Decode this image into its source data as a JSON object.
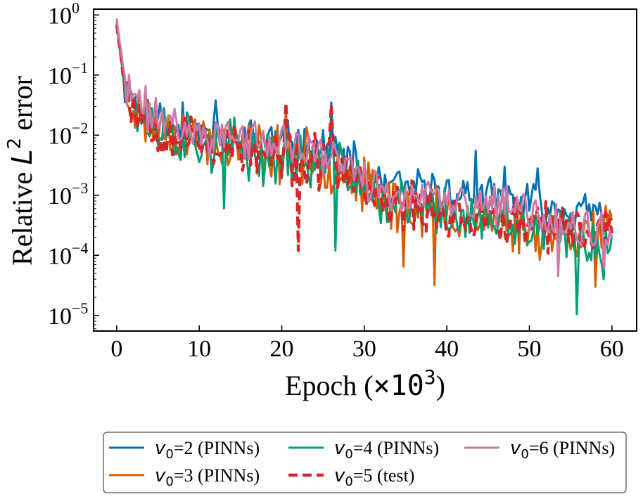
{
  "chart_data": {
    "type": "line",
    "xlabel_text": "Epoch (",
    "xlabel_factor": "×10",
    "xlabel_exponent": "3",
    "xlabel_close": ")",
    "ylabel_text": "Relative ",
    "ylabel_symbol": "L",
    "ylabel_exponent": "2",
    "ylabel_suffix": " error",
    "x_ticks": [
      "0",
      "10",
      "20",
      "30",
      "40",
      "50",
      "60"
    ],
    "y_ticks": [
      {
        "base": "10",
        "exp": "0"
      },
      {
        "base": "10",
        "exp": "−1"
      },
      {
        "base": "10",
        "exp": "−2"
      },
      {
        "base": "10",
        "exp": "−3"
      },
      {
        "base": "10",
        "exp": "−4"
      },
      {
        "base": "10",
        "exp": "−5"
      }
    ],
    "xlim": [
      -2.8,
      63
    ],
    "ylim": [
      5.5e-06,
      1.25
    ],
    "yscale": "log",
    "grid": false,
    "legend_position": "bottom, below plot",
    "series": [
      {
        "label_var": "v",
        "label_sub": "0",
        "label_rest": "=2 (PINNs)",
        "color": "#0072b2",
        "dashed": false,
        "seed": 11,
        "profile": [
          [
            0,
            0.8
          ],
          [
            1,
            0.07
          ],
          [
            3,
            0.025
          ],
          [
            7,
            0.015
          ],
          [
            10,
            0.011
          ],
          [
            20,
            0.008
          ],
          [
            27,
            0.005
          ],
          [
            32,
            0.0014
          ],
          [
            40,
            0.0011
          ],
          [
            45,
            0.0009
          ],
          [
            50,
            0.0007
          ],
          [
            55,
            0.00055
          ],
          [
            60,
            0.00045
          ]
        ],
        "spread": 0.55,
        "spikes": [
          [
            8,
            0.035
          ],
          [
            12,
            0.038
          ],
          [
            26,
            0.035
          ],
          [
            43.5,
            0.0055
          ],
          [
            47,
            0.003
          ],
          [
            51,
            0.0028
          ]
        ]
      },
      {
        "label_var": "v",
        "label_sub": "0",
        "label_rest": "=3 (PINNs)",
        "color": "#d55e00",
        "dashed": false,
        "seed": 23,
        "profile": [
          [
            0,
            0.78
          ],
          [
            1,
            0.06
          ],
          [
            3,
            0.02
          ],
          [
            7,
            0.012
          ],
          [
            10,
            0.009
          ],
          [
            20,
            0.005
          ],
          [
            27,
            0.003
          ],
          [
            32,
            0.0008
          ],
          [
            40,
            0.0005
          ],
          [
            45,
            0.0004
          ],
          [
            50,
            0.0003
          ],
          [
            55,
            0.00025
          ],
          [
            60,
            0.00025
          ]
        ],
        "spread": 0.75,
        "spikes": [
          [
            20.5,
            0.03
          ],
          [
            34.8,
            6.5e-05
          ],
          [
            38.5,
            3.2e-05
          ],
          [
            58,
            3e-05
          ]
        ]
      },
      {
        "label_var": "v",
        "label_sub": "0",
        "label_rest": "=4 (PINNs)",
        "color": "#009e73",
        "dashed": false,
        "seed": 37,
        "profile": [
          [
            0,
            0.8
          ],
          [
            1,
            0.06
          ],
          [
            3,
            0.02
          ],
          [
            7,
            0.01
          ],
          [
            10,
            0.008
          ],
          [
            20,
            0.004
          ],
          [
            27,
            0.003
          ],
          [
            32,
            0.0008
          ],
          [
            40,
            0.0005
          ],
          [
            45,
            0.00035
          ],
          [
            50,
            0.00025
          ],
          [
            55,
            0.0002
          ],
          [
            60,
            0.00015
          ]
        ],
        "spread": 0.75,
        "spikes": [
          [
            13,
            0.0006
          ],
          [
            26.5,
            0.00012
          ],
          [
            55.8,
            1.05e-05
          ],
          [
            59,
            4e-05
          ]
        ]
      },
      {
        "label_var": "v",
        "label_sub": "0",
        "label_rest": "=5 (test)",
        "color": "#d62728",
        "dashed": true,
        "seed": 53,
        "profile": [
          [
            0,
            0.75
          ],
          [
            1,
            0.06
          ],
          [
            3,
            0.02
          ],
          [
            7,
            0.01
          ],
          [
            10,
            0.008
          ],
          [
            20,
            0.004
          ],
          [
            27,
            0.003
          ],
          [
            32,
            0.0008
          ],
          [
            40,
            0.0005
          ],
          [
            45,
            0.0004
          ],
          [
            50,
            0.0003
          ],
          [
            55,
            0.00025
          ],
          [
            60,
            0.00025
          ]
        ],
        "spread": 0.7,
        "spikes": [
          [
            20.5,
            0.035
          ],
          [
            22,
            0.00012
          ],
          [
            26,
            0.032
          ]
        ]
      },
      {
        "label_var": "v",
        "label_sub": "0",
        "label_rest": "=6 (PINNs)",
        "color": "#cc79a7",
        "dashed": false,
        "seed": 71,
        "profile": [
          [
            0,
            0.9
          ],
          [
            1,
            0.07
          ],
          [
            3,
            0.03
          ],
          [
            7,
            0.015
          ],
          [
            10,
            0.011
          ],
          [
            20,
            0.007
          ],
          [
            27,
            0.004
          ],
          [
            32,
            0.0012
          ],
          [
            40,
            0.0008
          ],
          [
            45,
            0.0007
          ],
          [
            50,
            0.0005
          ],
          [
            55,
            0.0003
          ],
          [
            60,
            0.0002
          ]
        ],
        "spread": 0.55,
        "spikes": [
          [
            53.5,
            4.5e-05
          ],
          [
            59,
            6e-05
          ]
        ]
      }
    ]
  }
}
